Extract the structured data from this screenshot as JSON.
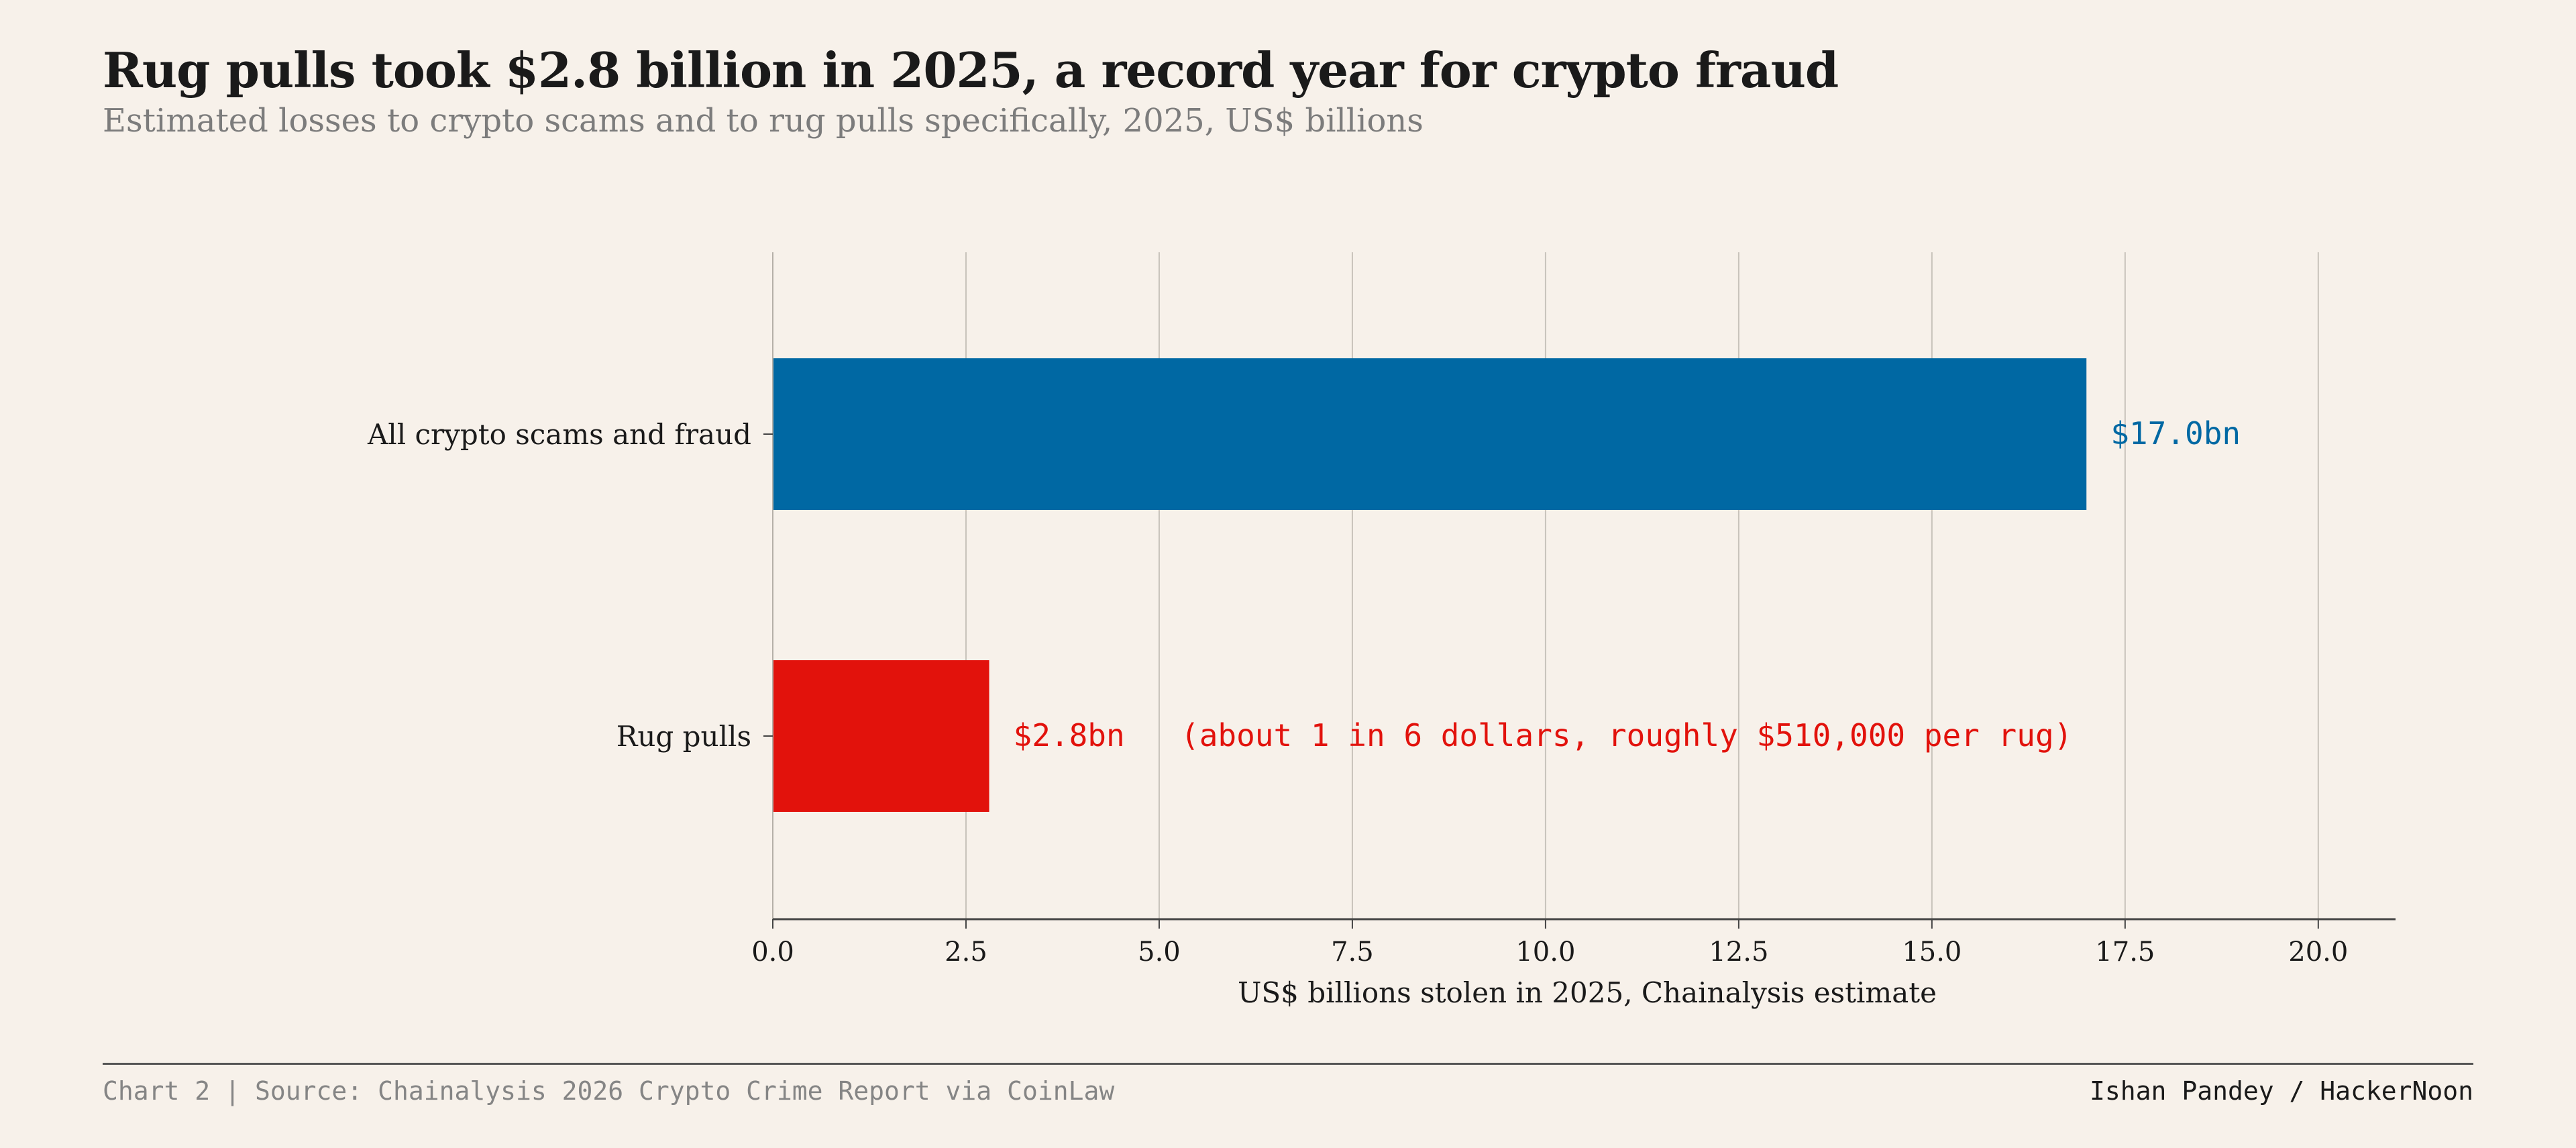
{
  "header": {
    "title": "Rug pulls took $2.8 billion in 2025, a record year for crypto fraud",
    "subtitle": "Estimated losses to crypto scams and to rug pulls specifically, 2025, US$ billions"
  },
  "chart_data": {
    "type": "bar",
    "orientation": "horizontal",
    "categories": [
      "All crypto scams and fraud",
      "Rug pulls"
    ],
    "values": [
      17.0,
      2.8
    ],
    "value_labels": [
      "$17.0bn",
      "$2.8bn"
    ],
    "colors": [
      "#0068a3",
      "#e2120c"
    ],
    "annotation": "(about 1 in 6 dollars, roughly $510,000 per rug)",
    "xlabel": "US$ billions stolen in 2025, Chainalysis estimate",
    "ylabel": "",
    "xlim": [
      0,
      21
    ],
    "xticks": [
      0.0,
      2.5,
      5.0,
      7.5,
      10.0,
      12.5,
      15.0,
      17.5,
      20.0
    ],
    "xtick_labels": [
      "0.0",
      "2.5",
      "5.0",
      "7.5",
      "10.0",
      "12.5",
      "15.0",
      "17.5",
      "20.0"
    ],
    "grid": "vertical"
  },
  "footer": {
    "chart_number": "Chart 2",
    "separator": "|",
    "source": "Source: Chainalysis 2026 Crypto Crime Report via CoinLaw",
    "credit": "Ishan Pandey / HackerNoon"
  },
  "colors": {
    "background": "#f7f1ea",
    "grid": "#c8c3bb",
    "axis": "#444444",
    "text": "#1a1a1a",
    "muted": "#7c7c7c"
  }
}
